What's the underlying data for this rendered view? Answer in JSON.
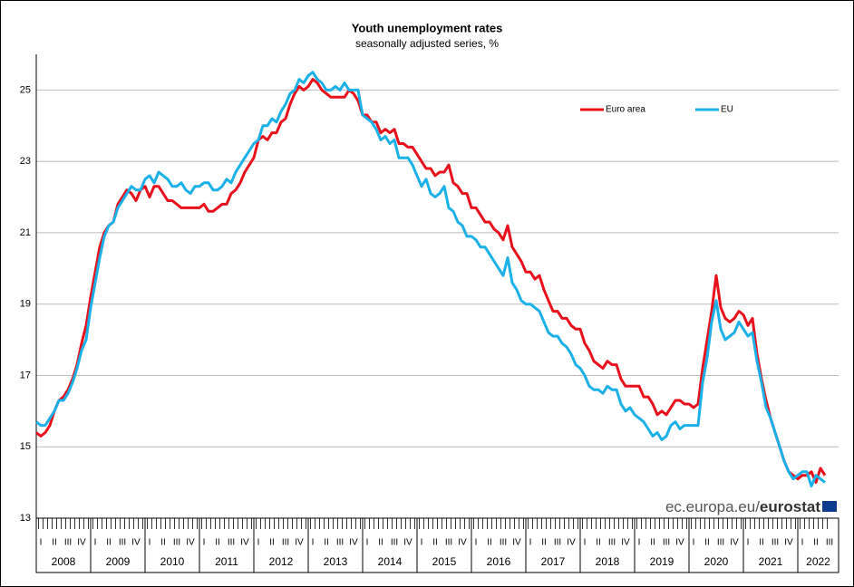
{
  "chart_data": {
    "type": "line",
    "title": "Youth unemployment rates",
    "subtitle": "seasonally adjusted series, %",
    "watermark": [
      "ec.europa.eu/",
      "eurostat"
    ],
    "year_labels": [
      "2008",
      "2009",
      "2010",
      "2011",
      "2012",
      "2013",
      "2014",
      "2015",
      "2016",
      "2017",
      "2018",
      "2019",
      "2020",
      "2021",
      "2022"
    ],
    "categories": [
      "I",
      null,
      null,
      "II",
      null,
      null,
      "III",
      null,
      null,
      "IV",
      null,
      null,
      "I",
      null,
      null,
      "II",
      null,
      null,
      "III",
      null,
      null,
      "IV",
      null,
      null,
      "I",
      null,
      null,
      "II",
      null,
      null,
      "III",
      null,
      null,
      "IV",
      null,
      null,
      "I",
      null,
      null,
      "II",
      null,
      null,
      "III",
      null,
      null,
      "IV",
      null,
      null,
      "I",
      null,
      null,
      "II",
      null,
      null,
      "III",
      null,
      null,
      "IV",
      null,
      null,
      "I",
      null,
      null,
      "II",
      null,
      null,
      "III",
      null,
      null,
      "IV",
      null,
      null,
      "I",
      null,
      null,
      "II",
      null,
      null,
      "III",
      null,
      null,
      "IV",
      null,
      null,
      "I",
      null,
      null,
      "II",
      null,
      null,
      "III",
      null,
      null,
      "IV",
      null,
      null,
      "I",
      null,
      null,
      "II",
      null,
      null,
      "III",
      null,
      null,
      "IV",
      null,
      null,
      "I",
      null,
      null,
      "II",
      null,
      null,
      "III",
      null,
      null,
      "IV",
      null,
      null,
      "I",
      null,
      null,
      "II",
      null,
      null,
      "III",
      null,
      null,
      "IV",
      null,
      null,
      "I",
      null,
      null,
      "II",
      null,
      null,
      "III",
      null,
      null,
      "IV",
      null,
      null,
      "I",
      null,
      null,
      "II",
      null,
      null,
      "III",
      null,
      null,
      "IV",
      null,
      null,
      "I",
      null,
      null,
      "II",
      null,
      null,
      "III",
      null,
      null,
      "IV",
      null,
      null,
      "I",
      null,
      null,
      "II",
      null,
      null,
      "III"
    ],
    "series": [
      {
        "name": "Euro area",
        "color": "#e8101a",
        "values": [
          15.4,
          15.3,
          15.4,
          15.6,
          16.0,
          16.3,
          16.4,
          16.6,
          16.9,
          17.3,
          17.9,
          18.4,
          19.2,
          19.9,
          20.6,
          21.0,
          21.2,
          21.3,
          21.8,
          22.0,
          22.2,
          22.1,
          21.9,
          22.2,
          22.3,
          22.0,
          22.3,
          22.3,
          22.1,
          21.9,
          21.9,
          21.8,
          21.7,
          21.7,
          21.7,
          21.7,
          21.7,
          21.8,
          21.6,
          21.6,
          21.7,
          21.8,
          21.8,
          22.1,
          22.2,
          22.4,
          22.7,
          22.9,
          23.1,
          23.6,
          23.7,
          23.6,
          23.8,
          23.8,
          24.1,
          24.2,
          24.6,
          24.9,
          25.1,
          25.0,
          25.1,
          25.3,
          25.2,
          25.0,
          24.9,
          24.8,
          24.8,
          24.8,
          24.8,
          25.0,
          24.9,
          24.7,
          24.3,
          24.3,
          24.1,
          24.1,
          23.8,
          23.9,
          23.8,
          23.9,
          23.5,
          23.5,
          23.4,
          23.4,
          23.2,
          23.0,
          22.8,
          22.8,
          22.6,
          22.7,
          22.7,
          22.9,
          22.4,
          22.3,
          22.1,
          22.1,
          21.7,
          21.7,
          21.5,
          21.3,
          21.3,
          21.1,
          21.0,
          20.8,
          21.2,
          20.6,
          20.4,
          20.2,
          19.9,
          19.9,
          19.7,
          19.8,
          19.4,
          19.1,
          18.8,
          18.8,
          18.6,
          18.6,
          18.4,
          18.3,
          18.3,
          17.9,
          17.7,
          17.4,
          17.3,
          17.2,
          17.4,
          17.3,
          17.3,
          16.9,
          16.7,
          16.7,
          16.7,
          16.7,
          16.4,
          16.4,
          16.2,
          15.9,
          16.0,
          15.9,
          16.1,
          16.3,
          16.3,
          16.2,
          16.2,
          16.1,
          16.2,
          17.2,
          18.0,
          18.8,
          19.8,
          18.9,
          18.6,
          18.5,
          18.6,
          18.8,
          18.7,
          18.4,
          18.6,
          17.6,
          16.9,
          16.3,
          15.8,
          15.4,
          15.0,
          14.6,
          14.3,
          14.2,
          14.1,
          14.2,
          14.2,
          14.3,
          14.0,
          14.4,
          14.2
        ]
      },
      {
        "name": "EU",
        "color": "#1ab0e8",
        "values": [
          15.7,
          15.6,
          15.6,
          15.8,
          16.0,
          16.3,
          16.3,
          16.5,
          16.8,
          17.2,
          17.7,
          18.0,
          18.9,
          19.6,
          20.3,
          20.9,
          21.2,
          21.3,
          21.7,
          21.9,
          22.1,
          22.3,
          22.2,
          22.2,
          22.5,
          22.6,
          22.4,
          22.7,
          22.6,
          22.5,
          22.3,
          22.3,
          22.4,
          22.2,
          22.1,
          22.3,
          22.3,
          22.4,
          22.4,
          22.2,
          22.2,
          22.3,
          22.5,
          22.4,
          22.7,
          22.9,
          23.1,
          23.3,
          23.5,
          23.6,
          24.0,
          24.0,
          24.2,
          24.1,
          24.4,
          24.6,
          24.9,
          25.0,
          25.3,
          25.2,
          25.4,
          25.5,
          25.3,
          25.2,
          25.0,
          25.0,
          25.1,
          25.0,
          25.2,
          25.0,
          25.0,
          25.0,
          24.3,
          24.2,
          24.1,
          23.9,
          23.6,
          23.7,
          23.5,
          23.6,
          23.1,
          23.1,
          23.1,
          22.9,
          22.6,
          22.3,
          22.5,
          22.1,
          22.0,
          22.1,
          22.3,
          21.7,
          21.6,
          21.3,
          21.2,
          20.9,
          20.9,
          20.8,
          20.6,
          20.6,
          20.4,
          20.2,
          20.0,
          19.8,
          20.3,
          19.6,
          19.4,
          19.1,
          19.0,
          19.0,
          18.9,
          18.8,
          18.5,
          18.2,
          18.1,
          18.1,
          17.9,
          17.8,
          17.6,
          17.3,
          17.2,
          17.0,
          16.7,
          16.6,
          16.6,
          16.5,
          16.7,
          16.6,
          16.6,
          16.2,
          16.0,
          16.1,
          15.9,
          15.8,
          15.7,
          15.5,
          15.3,
          15.4,
          15.2,
          15.3,
          15.6,
          15.7,
          15.5,
          15.6,
          15.6,
          15.6,
          15.6,
          16.8,
          17.5,
          18.5,
          19.1,
          18.3,
          18.0,
          18.1,
          18.2,
          18.5,
          18.3,
          18.1,
          18.2,
          17.4,
          16.8,
          16.1,
          15.8,
          15.4,
          15.0,
          14.6,
          14.3,
          14.1,
          14.2,
          14.3,
          14.3,
          13.9,
          14.2,
          14.1,
          14.0
        ]
      }
    ],
    "ylim": [
      13,
      26
    ],
    "yticks": [
      13,
      15,
      17,
      19,
      21,
      23,
      25
    ],
    "grid": true,
    "legend": "top-right"
  }
}
